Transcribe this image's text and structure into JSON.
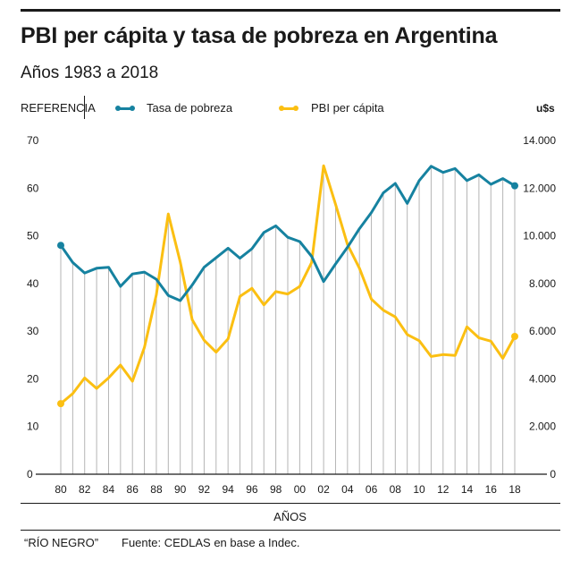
{
  "header": {
    "title": "PBI per cápita y tasa de pobreza en Argentina",
    "subtitle": "Años 1983 a 2018"
  },
  "legend": {
    "label": "REFERENCIA",
    "items": [
      {
        "label": "Tasa de pobreza",
        "color": "#1682a0"
      },
      {
        "label": "PBI per cápita",
        "color": "#fbbf12"
      }
    ],
    "right_unit": "u$s"
  },
  "footer": {
    "xaxis_title": "AÑOS",
    "credit": "“RÍO NEGRO”",
    "source": "Fuente: CEDLAS en base a Indec."
  },
  "chart_data": {
    "type": "line",
    "title": "PBI per cápita y tasa de pobreza en Argentina",
    "xlabel": "AÑOS",
    "ylabel_left": "",
    "ylabel_right": "u$s",
    "x": [
      1980,
      1981,
      1982,
      1983,
      1984,
      1985,
      1986,
      1987,
      1988,
      1989,
      1990,
      1991,
      1992,
      1993,
      1994,
      1995,
      1996,
      1997,
      1998,
      1999,
      2000,
      2001,
      2002,
      2003,
      2004,
      2005,
      2006,
      2007,
      2008,
      2009,
      2010,
      2011,
      2012,
      2013,
      2014,
      2015,
      2016,
      2017,
      2018
    ],
    "x_tick_labels": [
      "80",
      "82",
      "84",
      "86",
      "88",
      "90",
      "92",
      "94",
      "96",
      "98",
      "00",
      "02",
      "04",
      "06",
      "08",
      "10",
      "12",
      "14",
      "16",
      "18"
    ],
    "x_tick_years": [
      1980,
      1982,
      1984,
      1986,
      1988,
      1990,
      1992,
      1994,
      1996,
      1998,
      2000,
      2002,
      2004,
      2006,
      2008,
      2010,
      2012,
      2014,
      2016,
      2018
    ],
    "xlim": [
      1980,
      2018
    ],
    "ylim_left": [
      0,
      70
    ],
    "ylim_right": [
      0,
      14000
    ],
    "y_ticks_left": [
      "0",
      "10",
      "20",
      "30",
      "40",
      "50",
      "60",
      "70"
    ],
    "y_ticks_right": [
      "0",
      "2.000",
      "4.000",
      "6.000",
      "8.000",
      "10.000",
      "12.000",
      "14.000"
    ],
    "grid": "vertical lines per year",
    "legend_placement": "top-left",
    "series": [
      {
        "name": "Tasa de pobreza",
        "axis": "left",
        "color": "#1682a0",
        "values": [
          48.0,
          44.4,
          42.2,
          43.2,
          43.4,
          39.4,
          42.0,
          42.4,
          40.9,
          37.5,
          36.4,
          39.7,
          43.4,
          45.4,
          47.4,
          45.3,
          47.3,
          50.7,
          52.1,
          49.7,
          48.8,
          45.7,
          40.4,
          44.1,
          47.6,
          51.5,
          54.9,
          59.0,
          61.0,
          56.8,
          61.6,
          64.6,
          63.3,
          64.1,
          61.6,
          62.8,
          60.8,
          62.0,
          60.5
        ]
      },
      {
        "name": "PBI per cápita",
        "axis": "right",
        "color": "#fbbf12",
        "values": [
          2960,
          3380,
          4040,
          3600,
          4040,
          4580,
          3900,
          5320,
          7520,
          10920,
          8900,
          6480,
          5620,
          5120,
          5680,
          7460,
          7800,
          7100,
          7660,
          7560,
          7880,
          8880,
          12940,
          11320,
          9640,
          8640,
          7340,
          6880,
          6600,
          5860,
          5600,
          4940,
          5020,
          4980,
          6180,
          5720,
          5580,
          4860,
          5780
        ]
      }
    ]
  }
}
